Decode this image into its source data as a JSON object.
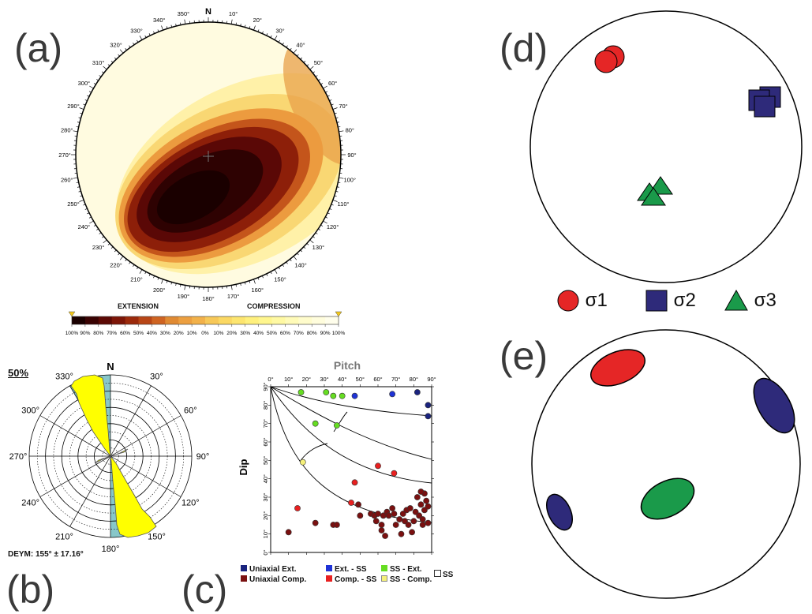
{
  "panels": {
    "a": {
      "label": "(a)",
      "north": "N",
      "ring_labels": [
        "10°",
        "20°",
        "30°",
        "40°",
        "50°",
        "60°",
        "70°",
        "80°",
        "90°",
        "100°",
        "110°",
        "120°",
        "130°",
        "140°",
        "150°",
        "160°",
        "170°",
        "180°",
        "190°",
        "200°",
        "210°",
        "220°",
        "230°",
        "240°",
        "250°",
        "260°",
        "270°",
        "280°",
        "290°",
        "300°",
        "310°",
        "320°",
        "330°",
        "340°",
        "350°"
      ],
      "colorbar": {
        "left_title": "EXTENSION",
        "right_title": "COMPRESSION",
        "ticks": [
          "100%",
          "90%",
          "80%",
          "70%",
          "60%",
          "50%",
          "40%",
          "30%",
          "20%",
          "10%",
          "0%",
          "10%",
          "20%",
          "30%",
          "40%",
          "50%",
          "60%",
          "70%",
          "80%",
          "90%",
          "100%"
        ],
        "colors": [
          "#1a0000",
          "#3a0303",
          "#5c0a05",
          "#7d1608",
          "#9c2a0c",
          "#b84616",
          "#cf6422",
          "#e08a33",
          "#ec9f40",
          "#f2b14a",
          "#f7c858",
          "#fbd863",
          "#fde56f",
          "#fff07d",
          "#fff68e",
          "#fff9a3",
          "#fffbb8",
          "#fffccc",
          "#fffddd",
          "#fffeec",
          "#ffffff"
        ],
        "marker_color": "#f2c71a"
      }
    },
    "b": {
      "label": "(b)",
      "percent_label": "50%",
      "north": "N",
      "angle_labels": [
        "30°",
        "60°",
        "90°",
        "120°",
        "150°",
        "180°",
        "210°",
        "240°",
        "270°",
        "300°",
        "330°"
      ],
      "footer": "DEYM: 155° ± 17.16°",
      "highlight_color": "#88c7c9",
      "petal_color": "#ffff00"
    },
    "c": {
      "label": "(c)",
      "title": "Pitch",
      "ylabel": "Dip",
      "x_ticks": [
        "0°",
        "10°",
        "20°",
        "30°",
        "40°",
        "50°",
        "60°",
        "70°",
        "80°",
        "90°"
      ],
      "y_ticks": [
        "0°",
        "10°",
        "20°",
        "30°",
        "40°",
        "50°",
        "60°",
        "70°",
        "80°",
        "90°"
      ],
      "legend": [
        {
          "label": "Uniaxial Ext.",
          "color": "#1a237e"
        },
        {
          "label": "Ext. - SS",
          "color": "#1f33d6"
        },
        {
          "label": "SS - Ext.",
          "color": "#66dd22"
        },
        {
          "label": "Uniaxial Comp.",
          "color": "#7a1010"
        },
        {
          "label": "Comp. - SS",
          "color": "#e82020"
        },
        {
          "label": "SS - Comp.",
          "color": "#f5f07a"
        }
      ],
      "legend_extra": "SS"
    },
    "d": {
      "label": "(d)",
      "legend": [
        {
          "label": "σ1",
          "shape": "circle",
          "color": "#e52626"
        },
        {
          "label": "σ2",
          "shape": "square",
          "color": "#2e2a7a"
        },
        {
          "label": "σ3",
          "shape": "triangle",
          "color": "#1a9a4a"
        }
      ]
    },
    "e": {
      "label": "(e)",
      "ellipse_colors": [
        "#e52626",
        "#2e2a7a",
        "#2e2a7a",
        "#1a9a4a"
      ]
    }
  },
  "chart_data": [
    {
      "type": "scatter",
      "title": "Pitch",
      "xlabel": "Pitch",
      "ylabel": "Dip",
      "xlim": [
        0,
        90
      ],
      "ylim": [
        0,
        90
      ],
      "grid": false,
      "series": [
        {
          "name": "Uniaxial Ext.",
          "points": [
            [
              82,
              87
            ],
            [
              88,
              80
            ],
            [
              88,
              74
            ]
          ]
        },
        {
          "name": "Ext. - SS",
          "points": [
            [
              47,
              85
            ],
            [
              68,
              86
            ]
          ]
        },
        {
          "name": "SS - Ext.",
          "points": [
            [
              17,
              87
            ],
            [
              31,
              87
            ],
            [
              35,
              85
            ],
            [
              40,
              85
            ],
            [
              25,
              70
            ],
            [
              37,
              69
            ]
          ]
        },
        {
          "name": "Uniaxial Comp.",
          "points": [
            [
              10,
              11
            ],
            [
              25,
              16
            ],
            [
              35,
              15
            ],
            [
              37,
              15
            ],
            [
              49,
              26
            ],
            [
              50,
              20
            ],
            [
              56,
              21
            ],
            [
              58,
              20
            ],
            [
              59,
              17
            ],
            [
              60,
              21
            ],
            [
              62,
              15
            ],
            [
              62,
              12
            ],
            [
              63,
              20
            ],
            [
              64,
              9
            ],
            [
              65,
              22
            ],
            [
              66,
              20
            ],
            [
              68,
              24
            ],
            [
              69,
              21
            ],
            [
              70,
              15
            ],
            [
              72,
              18
            ],
            [
              73,
              10
            ],
            [
              74,
              21
            ],
            [
              75,
              17
            ],
            [
              76,
              23
            ],
            [
              77,
              15
            ],
            [
              78,
              24
            ],
            [
              79,
              11
            ],
            [
              80,
              17
            ],
            [
              81,
              22
            ],
            [
              82,
              30
            ],
            [
              83,
              20
            ],
            [
              84,
              26
            ],
            [
              85,
              18
            ],
            [
              85,
              15
            ],
            [
              86,
              23
            ],
            [
              87,
              28
            ],
            [
              88,
              16
            ],
            [
              88,
              25
            ],
            [
              86,
              32
            ],
            [
              84,
              33
            ]
          ]
        },
        {
          "name": "Comp. - SS",
          "points": [
            [
              15,
              24
            ],
            [
              45,
              27
            ],
            [
              47,
              38
            ],
            [
              60,
              47
            ],
            [
              69,
              43
            ]
          ]
        },
        {
          "name": "SS - Comp.",
          "points": [
            [
              18,
              49
            ]
          ]
        }
      ]
    },
    {
      "type": "scatter",
      "title": "",
      "series": [
        {
          "name": "σ1",
          "marker": "circle",
          "count": 2
        },
        {
          "name": "σ2",
          "marker": "square",
          "count": 3
        },
        {
          "name": "σ3",
          "marker": "triangle",
          "count": 3
        }
      ]
    }
  ]
}
